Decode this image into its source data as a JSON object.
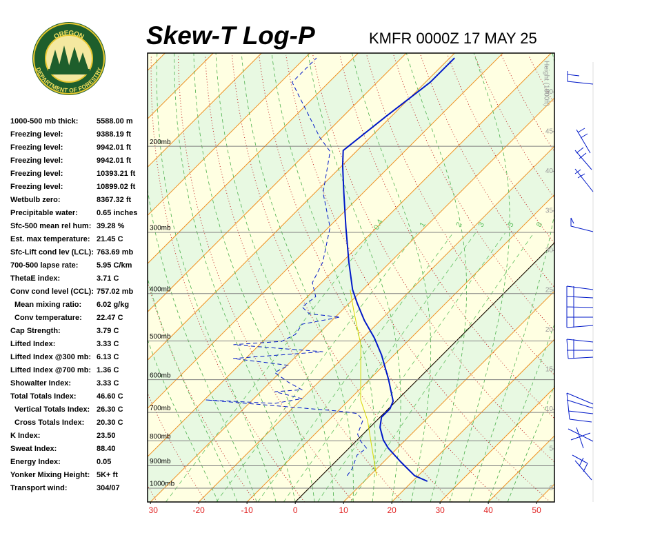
{
  "logo": {
    "top": "OREGON",
    "bottom": "DEPARTMENT OF FORESTRY"
  },
  "header": {
    "title": "Skew-T Log-P",
    "station": "KMFR 0000Z 17 MAY 25"
  },
  "stats": [
    [
      "1000-500 mb thick:",
      "5588.00 m"
    ],
    [
      "Freezing level:",
      "9388.19 ft"
    ],
    [
      "Freezing level:",
      "9942.01 ft"
    ],
    [
      "Freezing level:",
      "9942.01 ft"
    ],
    [
      "Freezing level:",
      "10393.21 ft"
    ],
    [
      "Freezing level:",
      "10899.02 ft"
    ],
    [
      "Wetbulb zero:",
      "8367.32 ft"
    ],
    [
      "Precipitable water:",
      "0.65 inches"
    ],
    [
      "Sfc-500 mean rel hum:",
      "39.28 %"
    ],
    [
      "Est. max temperature:",
      "21.45 C"
    ],
    [
      "Sfc-Lift cond lev (LCL):",
      "763.69 mb"
    ],
    [
      "700-500 lapse rate:",
      "5.95 C/km"
    ],
    [
      "ThetaE index:",
      "3.71 C"
    ],
    [
      "Conv cond level (CCL):",
      "757.02 mb"
    ],
    [
      "Mean mixing ratio:",
      "6.02 g/kg"
    ],
    [
      "Conv temperature:",
      "22.47 C"
    ],
    [
      "Cap Strength:",
      "3.79 C"
    ],
    [
      "Lifted Index:",
      "3.33 C"
    ],
    [
      "Lifted Index @300 mb:",
      "6.13 C"
    ],
    [
      "Lifted Index @700 mb:",
      "1.36 C"
    ],
    [
      "Showalter Index:",
      "3.33 C"
    ],
    [
      "Total Totals Index:",
      "46.60 C"
    ],
    [
      "Vertical Totals Index:",
      "26.30 C"
    ],
    [
      "Cross Totals Index:",
      "20.30 C"
    ],
    [
      "K Index:",
      "23.50"
    ],
    [
      "Sweat Index:",
      "88.40"
    ],
    [
      "Energy Index:",
      "0.05"
    ],
    [
      "Yonker Mixing Height:",
      "5K+ ft"
    ],
    [
      "Transport wind:",
      "304/07"
    ]
  ],
  "chart_data": {
    "type": "skewt",
    "log_scale": true,
    "xlim": [
      -30.6,
      53.7
    ],
    "xticks": [
      {
        "value": -30,
        "label": "30"
      },
      -20,
      -10,
      0,
      10,
      20,
      30,
      40,
      50
    ],
    "plim": [
      1067,
      129
    ],
    "pticks": [
      {
        "value": 1000,
        "label": "1000mb"
      },
      {
        "value": 900,
        "label": "900mb"
      },
      {
        "value": 800,
        "label": "800mb"
      },
      {
        "value": 700,
        "label": "700mb"
      },
      {
        "value": 600,
        "label": "600mb"
      },
      {
        "value": 500,
        "label": "500mb"
      },
      {
        "value": 400,
        "label": "400mb"
      },
      {
        "value": 300,
        "label": "300mb"
      },
      {
        "value": 200,
        "label": "200mb"
      }
    ],
    "height_label": "Height (1000ft)",
    "hlim": [
      -1.7,
      54.9
    ],
    "hticks": [
      0,
      5,
      10,
      15,
      20,
      25,
      30,
      35,
      40,
      45,
      50
    ],
    "mixing_ratios": [
      0.4,
      1,
      2,
      3,
      5,
      8
    ],
    "series": [
      {
        "color": "#0018c8",
        "style": "solid",
        "p": [
          968,
          943,
          884,
          828,
          797,
          751,
          716,
          688,
          664,
          599,
          534,
          493,
          454,
          419,
          393,
          345,
          293,
          249,
          219,
          204,
          174,
          148,
          132
        ],
        "values": [
          23.1,
          19.3,
          13.6,
          8.1,
          5.4,
          2.1,
          0.3,
          0.3,
          -0.6,
          -6.1,
          -12.6,
          -17.6,
          -23.3,
          -28.3,
          -32.1,
          -38.6,
          -46.4,
          -54,
          -59.9,
          -62.9,
          -61.1,
          -59,
          -59
        ]
      },
      {
        "color": "#0018c8",
        "style": "dashed",
        "p": [
          943,
          913,
          856,
          828,
          802,
          776,
          727,
          704,
          697,
          660,
          671,
          656,
          635,
          629,
          608,
          580,
          561,
          543,
          526,
          517,
          509,
          501,
          485,
          462,
          447,
          440,
          426,
          406,
          380,
          345,
          293,
          249,
          205,
          192,
          158,
          148,
          132
        ],
        "values": [
          5.3,
          4.9,
          3.1,
          3.6,
          1.0,
          -1.1,
          -2.9,
          -5.4,
          -8.7,
          -39.7,
          -24.7,
          -20,
          -27.1,
          -21.9,
          -26.1,
          -31.1,
          -29.7,
          -42.6,
          -25.4,
          -36.1,
          -45.4,
          -36.1,
          -34.7,
          -35.4,
          -29,
          -36.1,
          -39,
          -38.3,
          -41.9,
          -44,
          -49.7,
          -58.3,
          -65.4,
          -70.4,
          -83.3,
          -87.6,
          -87.6
        ]
      },
      {
        "color": "#d8d800",
        "style": "solid",
        "p": [
          943,
          884,
          802,
          727,
          660,
          509,
          433,
          393
        ],
        "values": [
          11.4,
          8.1,
          3.1,
          -1.9,
          -7.6,
          -19,
          -27.6,
          -32.6
        ]
      }
    ]
  }
}
